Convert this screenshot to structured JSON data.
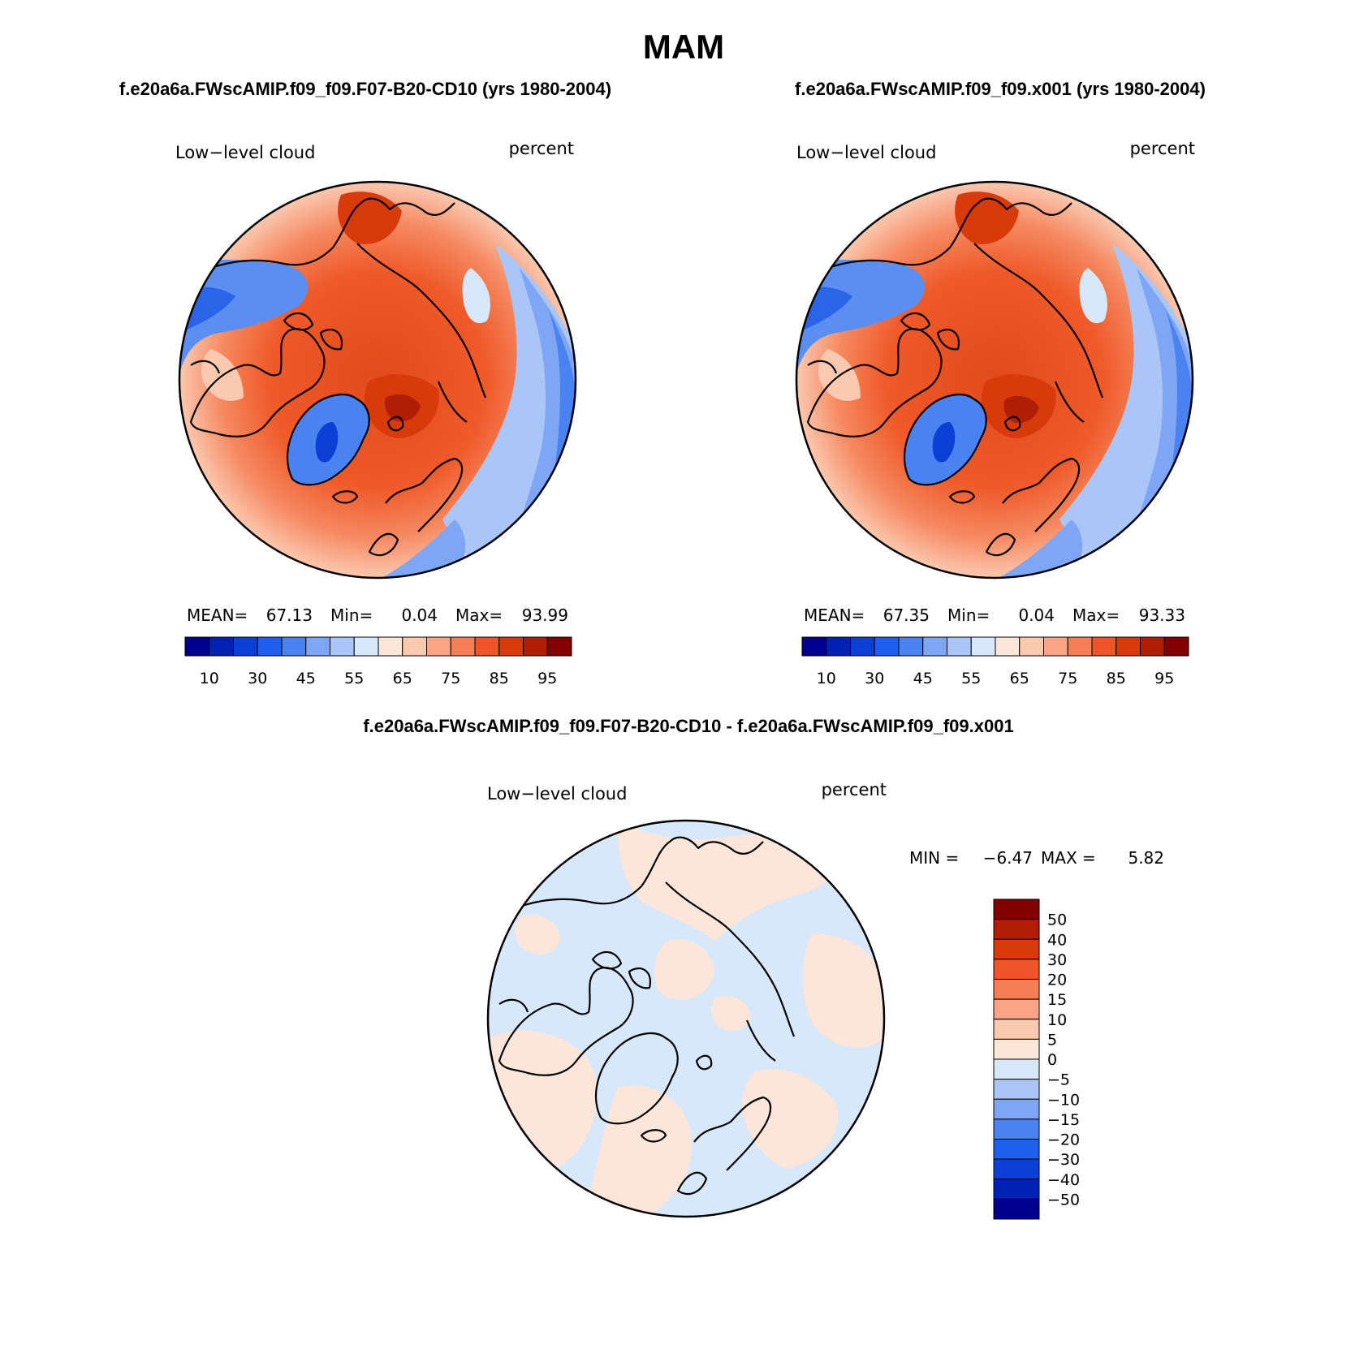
{
  "season": "MAM",
  "panels": [
    {
      "case": "f.e20a6a.FWscAMIP.f09_f09.F07-B20-CD10 (yrs 1980-2004)",
      "variable": "Low−level cloud",
      "units": "percent",
      "stats": {
        "mean_label": "MEAN=",
        "mean": "67.13",
        "min_label": "Min=",
        "min": "0.04",
        "max_label": "Max=",
        "max": "93.99"
      }
    },
    {
      "case": "f.e20a6a.FWscAMIP.f09_f09.x001 (yrs 1980-2004)",
      "variable": "Low−level cloud",
      "units": "percent",
      "stats": {
        "mean_label": "MEAN=",
        "mean": "67.35",
        "min_label": "Min=",
        "min": "0.04",
        "max_label": "Max=",
        "max": "93.33"
      }
    }
  ],
  "colorbar_abs": {
    "colors": [
      "#00008f",
      "#0022b4",
      "#0b3fd6",
      "#1f5ff0",
      "#4a82f0",
      "#7ea6f4",
      "#aac6f7",
      "#d8e8fb",
      "#fbe6d9",
      "#fbc8b0",
      "#f9a484",
      "#f67e55",
      "#ef5528",
      "#d83a0c",
      "#b01e06",
      "#830000"
    ],
    "labels": [
      "10",
      "30",
      "45",
      "55",
      "65",
      "75",
      "85",
      "95"
    ]
  },
  "difference": {
    "title": "f.e20a6a.FWscAMIP.f09_f09.F07-B20-CD10 - f.e20a6a.FWscAMIP.f09_f09.x001",
    "variable": "Low−level cloud",
    "units": "percent",
    "min_label": "MIN =",
    "min": "−6.47",
    "max_label": "MAX =",
    "max": "5.82",
    "colorbar": {
      "colors_top_to_bottom": [
        "#830000",
        "#b01e06",
        "#d83a0c",
        "#ef5528",
        "#f67e55",
        "#f9a484",
        "#fbc8b0",
        "#fbe6d9",
        "#d8e8fb",
        "#aac6f7",
        "#7ea6f4",
        "#4a82f0",
        "#1f5ff0",
        "#0b3fd6",
        "#0022b4",
        "#00008f"
      ],
      "labels_top_to_bottom": [
        "50",
        "40",
        "30",
        "20",
        "15",
        "10",
        "5",
        "0",
        "−5",
        "−10",
        "−15",
        "−20",
        "−30",
        "−40",
        "−50"
      ]
    }
  }
}
